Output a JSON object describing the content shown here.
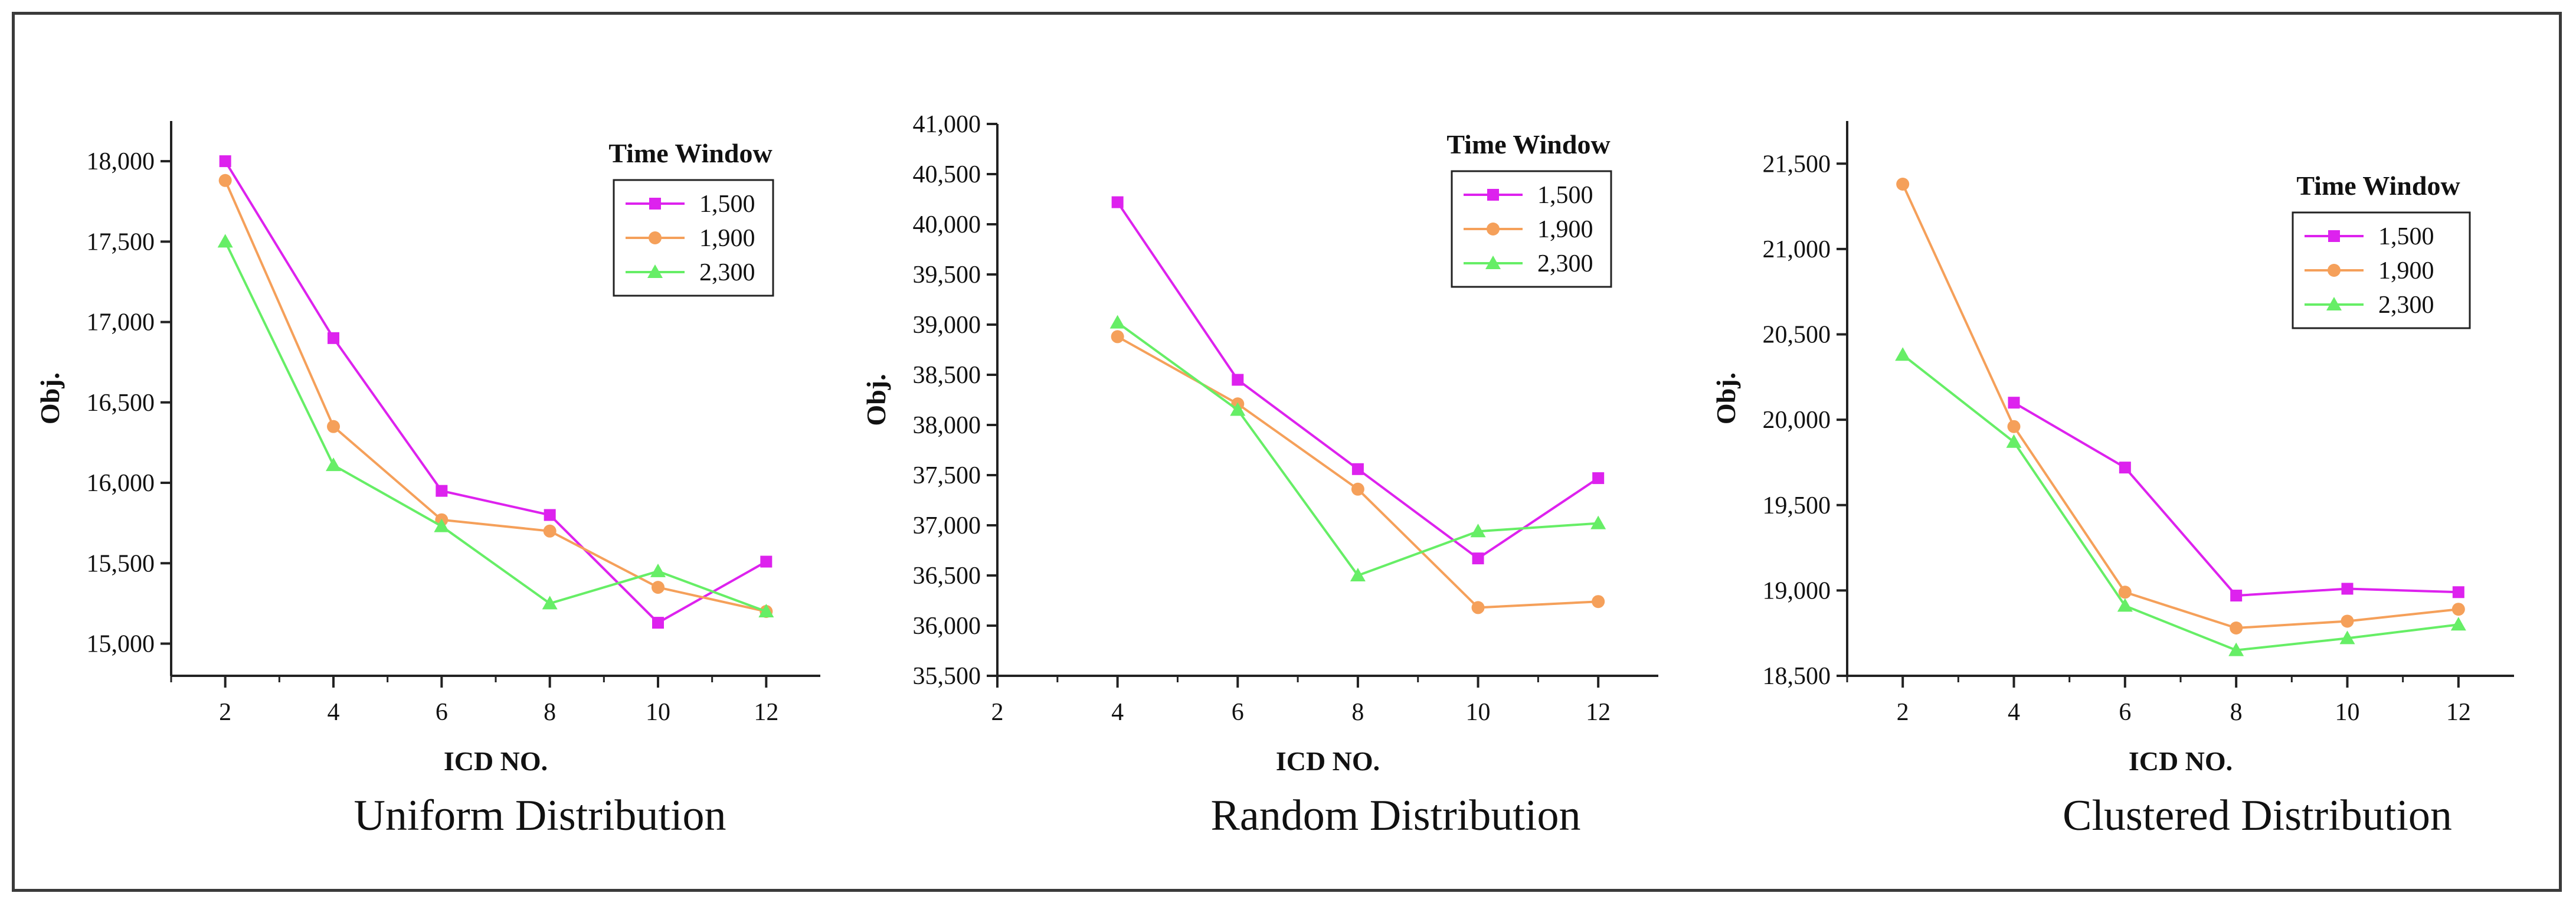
{
  "colors": {
    "s1500": "#dd22ee",
    "s1900": "#f5a05a",
    "s2300": "#66ee66",
    "axis": "#222222"
  },
  "chart_data": [
    {
      "type": "line",
      "caption": "Uniform Distribution",
      "xlabel": "ICD NO.",
      "ylabel": "Obj.",
      "xlim": [
        1,
        13
      ],
      "ylim": [
        14800,
        18250
      ],
      "xticks": [
        2,
        4,
        6,
        8,
        10,
        12
      ],
      "xtick_labels": [
        "2",
        "4",
        "6",
        "8",
        "10",
        "12"
      ],
      "yticks": [
        15000,
        15500,
        16000,
        16500,
        17000,
        17500,
        18000
      ],
      "ytick_labels": [
        "15,000",
        "15,500",
        "16,000",
        "16,500",
        "17,000",
        "17,500",
        "18,000"
      ],
      "legend_title": "Time Window",
      "legend_position": "right",
      "series": [
        {
          "name": "1,500",
          "marker": "square",
          "x": [
            2,
            4,
            6,
            8,
            10,
            12
          ],
          "values": [
            18000,
            16900,
            15950,
            15800,
            15130,
            15510
          ]
        },
        {
          "name": "1,900",
          "marker": "circle",
          "x": [
            2,
            4,
            6,
            8,
            10,
            12
          ],
          "values": [
            17880,
            16350,
            15770,
            15700,
            15350,
            15200
          ]
        },
        {
          "name": "2,300",
          "marker": "triangle",
          "x": [
            2,
            4,
            6,
            8,
            10,
            12
          ],
          "values": [
            17500,
            16110,
            15730,
            15250,
            15450,
            15200
          ]
        }
      ]
    },
    {
      "type": "line",
      "caption": "Random Distribution",
      "xlabel": "ICD NO.",
      "ylabel": "Obj.",
      "xlim": [
        2,
        13
      ],
      "ylim": [
        35500,
        41000
      ],
      "xticks": [
        2,
        4,
        6,
        8,
        10,
        12
      ],
      "xtick_labels": [
        "2",
        "4",
        "6",
        "8",
        "10",
        "12"
      ],
      "yticks": [
        35500,
        36000,
        36500,
        37000,
        37500,
        38000,
        38500,
        39000,
        39500,
        40000,
        40500,
        41000
      ],
      "ytick_labels": [
        "35,500",
        "36,000",
        "36,500",
        "37,000",
        "37,500",
        "38,000",
        "38,500",
        "39,000",
        "39,500",
        "40,000",
        "40,500",
        "41,000"
      ],
      "legend_title": "Time Window",
      "legend_position": "right",
      "series": [
        {
          "name": "1,500",
          "marker": "square",
          "x": [
            4,
            6,
            8,
            10,
            12
          ],
          "values": [
            40220,
            38450,
            37560,
            36670,
            37470
          ]
        },
        {
          "name": "1,900",
          "marker": "circle",
          "x": [
            4,
            6,
            8,
            10,
            12
          ],
          "values": [
            38880,
            38210,
            37360,
            36180,
            36240
          ]
        },
        {
          "name": "2,300",
          "marker": "triangle",
          "x": [
            4,
            6,
            8,
            10,
            12
          ],
          "values": [
            39020,
            38150,
            36500,
            36940,
            37020
          ]
        }
      ]
    },
    {
      "type": "line",
      "caption": "Clustered Distribution",
      "xlabel": "ICD NO.",
      "ylabel": "Obj.",
      "xlim": [
        1,
        13
      ],
      "ylim": [
        18500,
        21750
      ],
      "xticks": [
        2,
        4,
        6,
        8,
        10,
        12
      ],
      "xtick_labels": [
        "2",
        "4",
        "6",
        "8",
        "10",
        "12"
      ],
      "yticks": [
        18500,
        19000,
        19500,
        20000,
        20500,
        21000,
        21500
      ],
      "ytick_labels": [
        "18,500",
        "19,000",
        "19,500",
        "20,000",
        "20,500",
        "21,000",
        "21,500"
      ],
      "legend_title": "Time Window",
      "legend_position": "right",
      "series": [
        {
          "name": "1,500",
          "marker": "square",
          "x": [
            4,
            6,
            8,
            10,
            12
          ],
          "values": [
            20100,
            19720,
            18970,
            19010,
            18990
          ]
        },
        {
          "name": "1,900",
          "marker": "circle",
          "x": [
            2,
            4,
            6,
            8,
            10,
            12
          ],
          "values": [
            21380,
            19960,
            18990,
            18780,
            18820,
            18890
          ]
        },
        {
          "name": "2,300",
          "marker": "triangle",
          "x": [
            2,
            4,
            6,
            8,
            10,
            12
          ],
          "values": [
            20380,
            19870,
            18910,
            18650,
            18720,
            18800
          ]
        }
      ]
    }
  ]
}
